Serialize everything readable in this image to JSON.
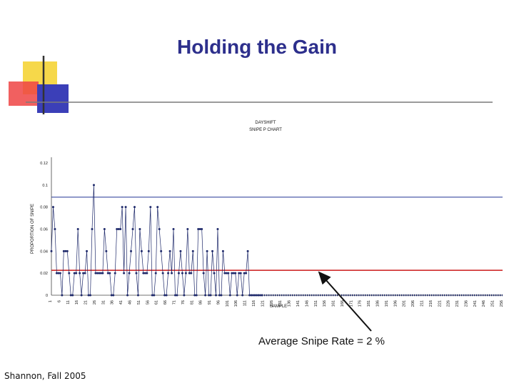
{
  "slide": {
    "title": "Holding the Gain",
    "caption": "Average Snipe Rate = 2 %",
    "footer": "Shannon, Fall 2005"
  },
  "colors": {
    "title": "#2d2f8c",
    "series": "#1f2a6b",
    "ucl_line": "#3a4aa0",
    "mean_line": "#cc1a1a",
    "deco_yellow": "#f6d84a",
    "deco_red": "#ee4444",
    "deco_blue": "#3b3fb8"
  },
  "chart_data": {
    "type": "line",
    "title": "DAYSHIFT",
    "subtitle": "SNIPE P CHART",
    "xlabel": "SAMPLE",
    "ylabel": "PROPORTION OF SNIPE",
    "ylim": [
      0,
      0.12
    ],
    "yticks": [
      "0",
      "0.02",
      "0.04",
      "0.06",
      "0.08",
      "0.1",
      "0.12"
    ],
    "ytick_values": [
      0,
      0.02,
      0.04,
      0.06,
      0.08,
      0.1,
      0.12
    ],
    "xlim": [
      1,
      256
    ],
    "xticks": [
      1,
      6,
      11,
      16,
      21,
      26,
      31,
      36,
      41,
      46,
      51,
      56,
      61,
      66,
      71,
      76,
      81,
      86,
      91,
      96,
      101,
      106,
      111,
      116,
      121,
      126,
      131,
      136,
      141,
      146,
      151,
      156,
      161,
      166,
      171,
      176,
      181,
      186,
      191,
      196,
      201,
      206,
      211,
      216,
      221,
      226,
      231,
      236,
      241,
      246,
      251,
      256
    ],
    "ucl": 0.089,
    "center_line": 0.0226,
    "series": [
      {
        "x": [
          1,
          2,
          3,
          4,
          5,
          6,
          7,
          8,
          9,
          10,
          11,
          12,
          13,
          14,
          15,
          16,
          17,
          18,
          19,
          20,
          21,
          22,
          23,
          24,
          25,
          26,
          27,
          28,
          29,
          30,
          31,
          32,
          33,
          34,
          35,
          36,
          37,
          38,
          39,
          40,
          41,
          42,
          43,
          44,
          45,
          46,
          47,
          48,
          49,
          50,
          51,
          52,
          53,
          54,
          55,
          56,
          57,
          58,
          59,
          60,
          61,
          62,
          63,
          64,
          65,
          66,
          67,
          68,
          69,
          70,
          71,
          72,
          73,
          74,
          75,
          76,
          77,
          78,
          79,
          80,
          81,
          82,
          83,
          84,
          85,
          86,
          87,
          88,
          89,
          90,
          91,
          92,
          93,
          94,
          95,
          96,
          97,
          98,
          99,
          100,
          101,
          102,
          103,
          104,
          105,
          106,
          107,
          108,
          109,
          110,
          111,
          112,
          113,
          114,
          115,
          116,
          117,
          118,
          119,
          120
        ],
        "values": [
          0.04,
          0.08,
          0.06,
          0.02,
          0.02,
          0.02,
          0,
          0.04,
          0.04,
          0.04,
          0.02,
          0,
          0,
          0.02,
          0.02,
          0.06,
          0.02,
          0,
          0.02,
          0.02,
          0.04,
          0,
          0,
          0.06,
          0.1,
          0.02,
          0.02,
          0.02,
          0.02,
          0.02,
          0.06,
          0.04,
          0.02,
          0.02,
          0,
          0,
          0.02,
          0.06,
          0.06,
          0.06,
          0.08,
          0.02,
          0.08,
          0,
          0.02,
          0.04,
          0.06,
          0.08,
          0.02,
          0,
          0.06,
          0.04,
          0.02,
          0.02,
          0.02,
          0.04,
          0.08,
          0,
          0,
          0.02,
          0.08,
          0.06,
          0.04,
          0.02,
          0,
          0,
          0.02,
          0.04,
          0.02,
          0.06,
          0,
          0,
          0.02,
          0.04,
          0.02,
          0,
          0.02,
          0.06,
          0.02,
          0.02,
          0.04,
          0,
          0,
          0.06,
          0.06,
          0.06,
          0.02,
          0,
          0.04,
          0,
          0,
          0.04,
          0.02,
          0,
          0.06,
          0,
          0,
          0.04,
          0.02,
          0.02,
          0.02,
          0,
          0.02,
          0.02,
          0.02,
          0,
          0.02,
          0.02,
          0,
          0.02,
          0.02,
          0.04,
          0,
          0,
          0,
          0,
          0,
          0,
          0,
          0
        ]
      }
    ]
  }
}
